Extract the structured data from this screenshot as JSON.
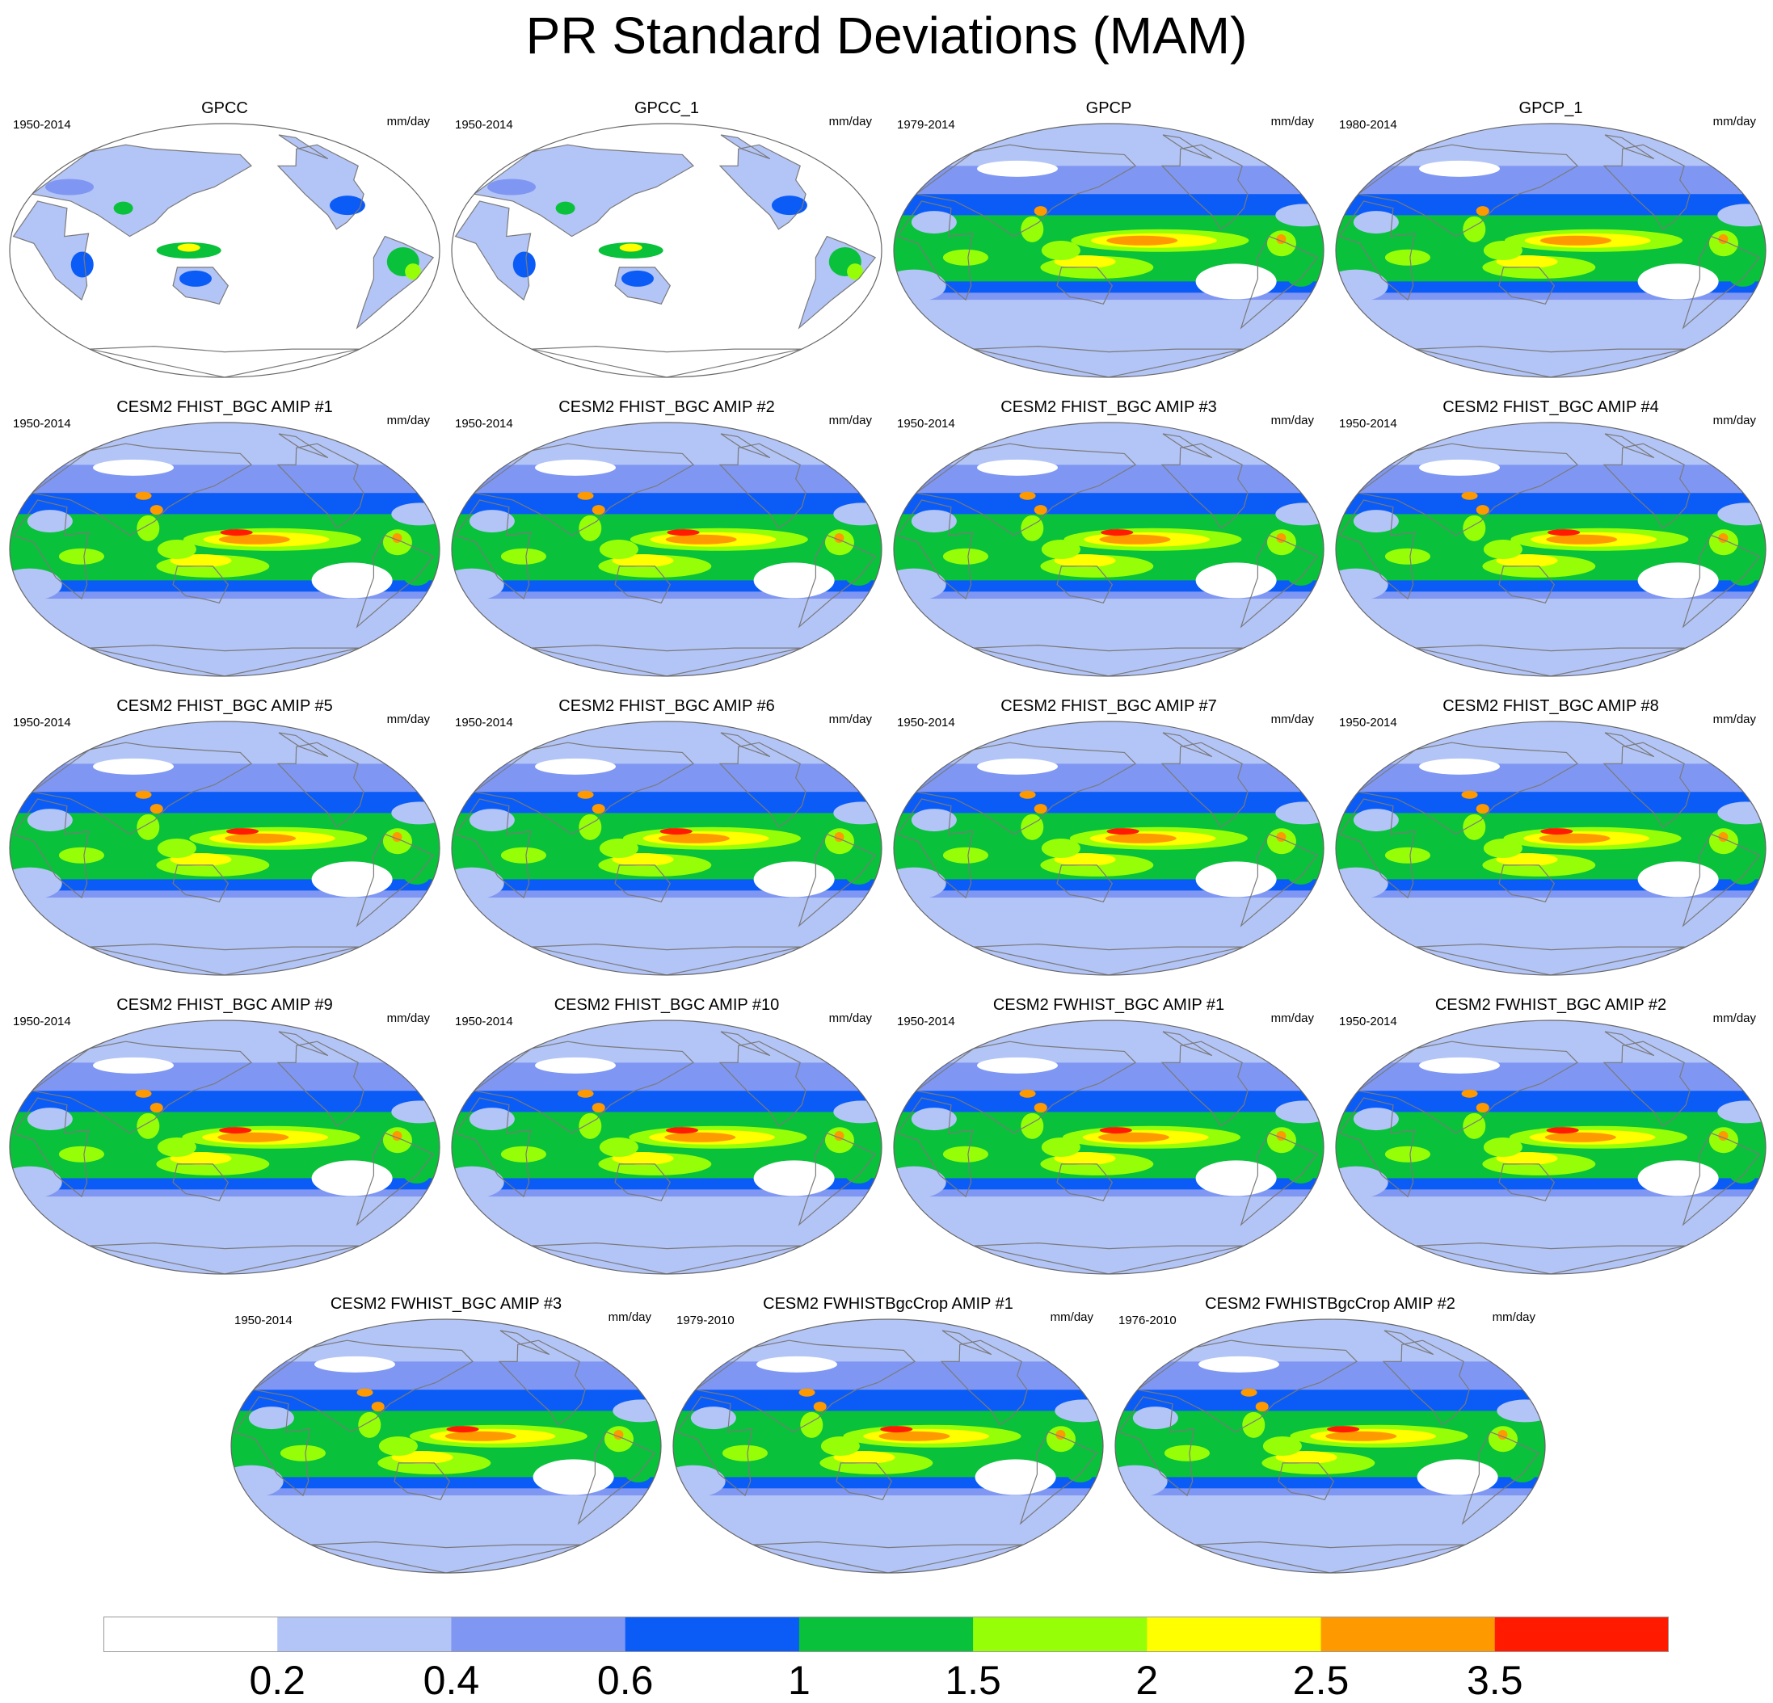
{
  "figure_title": "PR Standard Deviations (MAM)",
  "units": "mm/day",
  "colors": {
    "levels": [
      "#ffffff",
      "#b3c4f6",
      "#7f97f2",
      "#0b5cf7",
      "#09c13a",
      "#96ff08",
      "#ffff00",
      "#ff9900",
      "#ff1a00"
    ],
    "land_outline": "#7a7a7a",
    "border": "#666666"
  },
  "colorbar": {
    "labels": [
      "0.2",
      "0.4",
      "0.6",
      "1",
      "1.5",
      "2",
      "2.5",
      "3.5"
    ]
  },
  "panels": [
    {
      "title": "GPCC",
      "years": "1950-2014",
      "type": "land"
    },
    {
      "title": "GPCC_1",
      "years": "1950-2014",
      "type": "land"
    },
    {
      "title": "GPCP",
      "years": "1979-2014",
      "type": "obs"
    },
    {
      "title": "GPCP_1",
      "years": "1980-2014",
      "type": "obs"
    },
    {
      "title": "CESM2 FHIST_BGC AMIP #1",
      "years": "1950-2014",
      "type": "model"
    },
    {
      "title": "CESM2 FHIST_BGC AMIP #2",
      "years": "1950-2014",
      "type": "model"
    },
    {
      "title": "CESM2 FHIST_BGC AMIP #3",
      "years": "1950-2014",
      "type": "model"
    },
    {
      "title": "CESM2 FHIST_BGC AMIP #4",
      "years": "1950-2014",
      "type": "model"
    },
    {
      "title": "CESM2 FHIST_BGC AMIP #5",
      "years": "1950-2014",
      "type": "model"
    },
    {
      "title": "CESM2 FHIST_BGC AMIP #6",
      "years": "1950-2014",
      "type": "model"
    },
    {
      "title": "CESM2 FHIST_BGC AMIP #7",
      "years": "1950-2014",
      "type": "model"
    },
    {
      "title": "CESM2 FHIST_BGC AMIP #8",
      "years": "1950-2014",
      "type": "model"
    },
    {
      "title": "CESM2 FHIST_BGC AMIP #9",
      "years": "1950-2014",
      "type": "model"
    },
    {
      "title": "CESM2 FHIST_BGC AMIP #10",
      "years": "1950-2014",
      "type": "model"
    },
    {
      "title": "CESM2 FWHIST_BGC AMIP #1",
      "years": "1950-2014",
      "type": "model"
    },
    {
      "title": "CESM2 FWHIST_BGC AMIP #2",
      "years": "1950-2014",
      "type": "model"
    },
    {
      "title": "CESM2 FWHIST_BGC AMIP #3",
      "years": "1950-2014",
      "type": "model"
    },
    {
      "title": "CESM2 FWHISTBgcCrop AMIP #1",
      "years": "1979-2010",
      "type": "model"
    },
    {
      "title": "CESM2 FWHISTBgcCrop AMIP #2",
      "years": "1976-2010",
      "type": "model"
    }
  ]
}
